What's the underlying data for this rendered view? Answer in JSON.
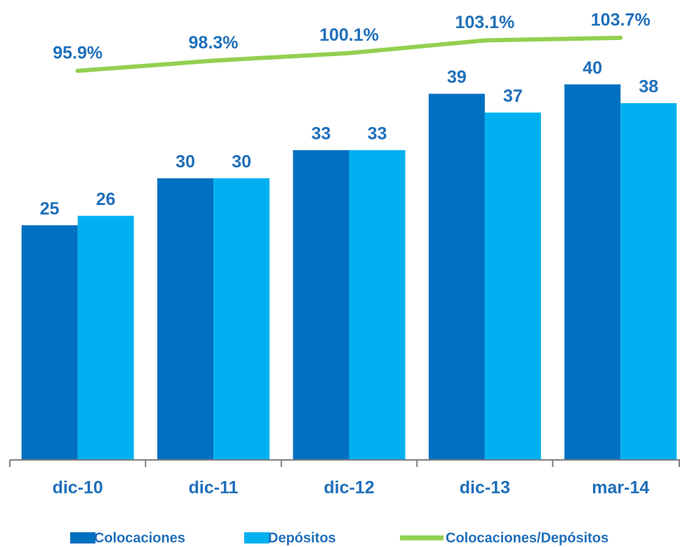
{
  "chart_data": {
    "type": "bar",
    "categories": [
      "dic-10",
      "dic-11",
      "dic-12",
      "dic-13",
      "mar-14"
    ],
    "series": [
      {
        "name": "Colocaciones",
        "type": "bar",
        "color": "#0070c0",
        "values": [
          25,
          30,
          33,
          39,
          40
        ]
      },
      {
        "name": "Depósitos",
        "type": "bar",
        "color": "#00b0f0",
        "values": [
          26,
          30,
          33,
          37,
          38
        ]
      },
      {
        "name": "Colocaciones/Depósitos",
        "type": "line",
        "axis": "y2",
        "color": "#92d050",
        "values": [
          95.9,
          98.3,
          100.1,
          103.1,
          103.7
        ],
        "value_labels": [
          "95.9%",
          "98.3%",
          "100.1%",
          "103.1%",
          "103.7%"
        ]
      }
    ],
    "ylim": [
      0,
      46
    ],
    "y2lim": [
      4,
      106
    ],
    "legend": "bottom"
  }
}
